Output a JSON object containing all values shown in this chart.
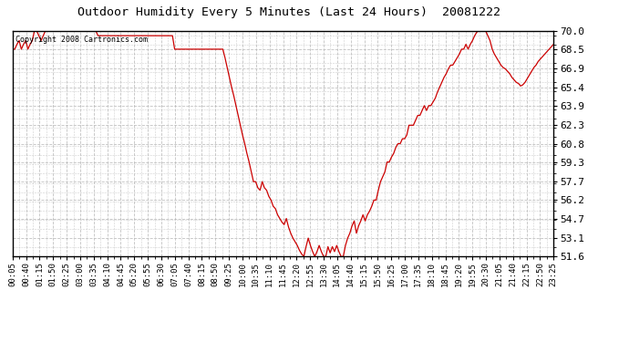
{
  "title": "Outdoor Humidity Every 5 Minutes (Last 24 Hours)  20081222",
  "copyright_text": "Copyright 2008 Cartronics.com",
  "line_color": "#cc0000",
  "bg_color": "#ffffff",
  "grid_color": "#bbbbbb",
  "ylim": [
    51.6,
    70.0
  ],
  "yticks": [
    51.6,
    53.1,
    54.7,
    56.2,
    57.7,
    59.3,
    60.8,
    62.3,
    63.9,
    65.4,
    66.9,
    68.5,
    70.0
  ],
  "xtick_labels": [
    "00:05",
    "00:40",
    "01:15",
    "01:50",
    "02:25",
    "03:00",
    "03:35",
    "04:10",
    "04:45",
    "05:20",
    "05:55",
    "06:30",
    "07:05",
    "07:40",
    "08:15",
    "08:50",
    "09:25",
    "10:00",
    "10:35",
    "11:10",
    "11:45",
    "12:20",
    "12:55",
    "13:30",
    "14:05",
    "14:40",
    "15:15",
    "15:50",
    "16:25",
    "17:00",
    "17:35",
    "18:10",
    "18:45",
    "19:20",
    "19:55",
    "20:30",
    "21:05",
    "21:40",
    "22:15",
    "22:50",
    "23:25"
  ],
  "data": [
    68.5,
    68.5,
    68.9,
    69.2,
    68.5,
    68.9,
    69.2,
    68.5,
    68.9,
    69.2,
    70.0,
    70.0,
    69.6,
    69.2,
    69.6,
    70.0,
    70.0,
    70.0,
    70.0,
    70.0,
    70.0,
    70.0,
    70.0,
    70.0,
    70.0,
    70.0,
    70.0,
    70.0,
    70.0,
    70.0,
    70.0,
    70.0,
    70.0,
    70.0,
    70.0,
    70.0,
    70.0,
    70.0,
    70.0,
    69.6,
    69.6,
    69.6,
    69.6,
    69.6,
    69.6,
    69.6,
    69.6,
    69.6,
    69.6,
    69.6,
    69.6,
    69.6,
    69.6,
    69.6,
    69.6,
    69.6,
    69.6,
    69.6,
    69.6,
    69.6,
    69.6,
    69.6,
    69.6,
    69.6,
    69.6,
    69.6,
    69.6,
    69.6,
    69.6,
    69.6,
    69.6,
    69.6,
    69.6,
    69.6,
    68.5,
    68.5,
    68.5,
    68.5,
    68.5,
    68.5,
    68.5,
    68.5,
    68.5,
    68.5,
    68.5,
    68.5,
    68.5,
    68.5,
    68.5,
    68.5,
    68.5,
    68.5,
    68.5,
    68.5,
    68.5,
    68.5,
    68.5,
    67.8,
    67.0,
    66.2,
    65.4,
    64.7,
    63.9,
    63.1,
    62.3,
    61.5,
    60.8,
    60.0,
    59.3,
    58.5,
    57.7,
    57.7,
    57.2,
    57.0,
    57.7,
    57.2,
    57.0,
    56.5,
    56.2,
    55.7,
    55.5,
    55.0,
    54.7,
    54.4,
    54.2,
    54.7,
    54.0,
    53.5,
    53.1,
    52.8,
    52.5,
    52.1,
    51.8,
    51.6,
    52.4,
    53.1,
    52.5,
    52.0,
    51.6,
    52.0,
    52.5,
    52.0,
    51.6,
    51.6,
    52.4,
    51.9,
    52.4,
    52.0,
    52.5,
    52.0,
    51.6,
    51.6,
    52.5,
    53.1,
    53.5,
    54.1,
    54.5,
    53.5,
    54.1,
    54.5,
    55.0,
    54.5,
    55.0,
    55.3,
    55.7,
    56.2,
    56.2,
    57.0,
    57.7,
    58.1,
    58.5,
    59.3,
    59.3,
    59.7,
    60.0,
    60.5,
    60.8,
    60.8,
    61.2,
    61.2,
    61.5,
    62.3,
    62.3,
    62.3,
    62.7,
    63.1,
    63.1,
    63.5,
    63.9,
    63.5,
    63.9,
    63.9,
    64.2,
    64.5,
    65.0,
    65.4,
    65.8,
    66.2,
    66.5,
    66.9,
    67.2,
    67.2,
    67.5,
    67.8,
    68.1,
    68.5,
    68.5,
    68.9,
    68.5,
    68.9,
    69.2,
    69.6,
    69.9,
    70.0,
    70.0,
    70.0,
    70.0,
    69.6,
    69.2,
    68.5,
    68.1,
    67.8,
    67.5,
    67.2,
    67.0,
    66.9,
    66.7,
    66.5,
    66.2,
    66.0,
    65.8,
    65.7,
    65.5,
    65.6,
    65.8,
    66.1,
    66.4,
    66.7,
    67.0,
    67.2,
    67.5,
    67.7,
    67.9,
    68.1,
    68.3,
    68.5,
    68.7,
    68.9
  ]
}
